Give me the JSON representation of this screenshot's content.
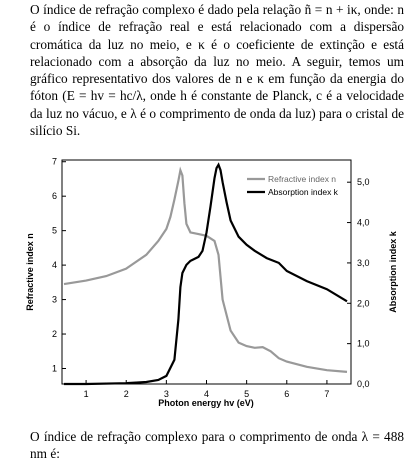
{
  "text": {
    "intro": "O índice de refração complexo é dado pela relação ñ = n + iκ, onde: n é o índice de refração real e está relacionado com a dispersão cromática da luz no meio, e κ é o coeficiente de extinção e está relacionado com a absorção da luz no meio. A seguir, temos um gráfico representativo dos valores de n e κ em função da energia do fóton (E = hv = hc/λ, onde h é constante de Planck, c é a velocidade da luz no vácuo, e λ é o comprimento de onda da luz) para o cristal de silício Si.",
    "question": "O índice de refração complexo para o comprimento de onda λ = 488 nm é:"
  },
  "colors": {
    "refractive": "#999999",
    "absorption": "#000000"
  },
  "chart_data": {
    "type": "line",
    "xlabel": "Photon energy hv (eV)",
    "ylabel_left": "Refractive index n",
    "ylabel_right": "Absorption index k",
    "xlim": [
      0.4,
      7.6
    ],
    "ylim_left": [
      0.55,
      7.05
    ],
    "ylim_right": [
      0.0,
      5.55
    ],
    "x_ticks": [
      "1",
      "2",
      "3",
      "4",
      "5",
      "6",
      "7"
    ],
    "y_left_ticks": [
      "1",
      "2",
      "3",
      "4",
      "5",
      "6",
      "7"
    ],
    "y_right_ticks": [
      "0,0",
      "1,0",
      "2,0",
      "3,0",
      "4,0",
      "5,0"
    ],
    "legend_position": "top-right",
    "grid": false,
    "series": [
      {
        "name": "Refractive index n",
        "axis": "left",
        "x": [
          0.45,
          1.0,
          1.5,
          2.0,
          2.5,
          2.8,
          3.0,
          3.1,
          3.2,
          3.3,
          3.35,
          3.4,
          3.45,
          3.5,
          3.6,
          3.8,
          4.0,
          4.2,
          4.3,
          4.4,
          4.6,
          4.8,
          5.0,
          5.2,
          5.4,
          5.6,
          5.8,
          6.0,
          6.5,
          7.0,
          7.5
        ],
        "y": [
          3.45,
          3.55,
          3.68,
          3.9,
          4.3,
          4.7,
          5.05,
          5.4,
          5.9,
          6.45,
          6.75,
          6.6,
          5.8,
          5.2,
          4.95,
          4.9,
          4.85,
          4.7,
          4.3,
          3.0,
          2.1,
          1.75,
          1.65,
          1.6,
          1.62,
          1.5,
          1.3,
          1.2,
          1.05,
          0.95,
          0.9
        ]
      },
      {
        "name": "Absorption index k",
        "axis": "right",
        "x": [
          0.45,
          1.0,
          2.0,
          2.5,
          2.8,
          3.0,
          3.2,
          3.3,
          3.35,
          3.4,
          3.5,
          3.6,
          3.7,
          3.8,
          3.9,
          4.0,
          4.1,
          4.2,
          4.25,
          4.3,
          4.35,
          4.4,
          4.5,
          4.6,
          4.8,
          5.0,
          5.2,
          5.5,
          5.8,
          6.0,
          6.5,
          7.0,
          7.5
        ],
        "y": [
          0.0,
          0.0,
          0.02,
          0.05,
          0.1,
          0.2,
          0.6,
          1.6,
          2.4,
          2.75,
          2.95,
          3.05,
          3.1,
          3.15,
          3.3,
          3.75,
          4.4,
          5.1,
          5.35,
          5.43,
          5.3,
          5.0,
          4.5,
          4.05,
          3.65,
          3.45,
          3.3,
          3.12,
          3.0,
          2.8,
          2.55,
          2.35,
          2.05
        ]
      }
    ]
  }
}
